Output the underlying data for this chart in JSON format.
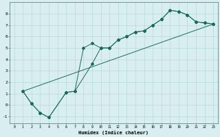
{
  "xlabel": "Humidex (Indice chaleur)",
  "background_color": "#d8eef0",
  "grid_color": "#b8d8da",
  "line_color": "#1a6a5a",
  "xlim": [
    -0.5,
    23.5
  ],
  "ylim": [
    -1.6,
    9.0
  ],
  "xticks": [
    0,
    1,
    2,
    3,
    4,
    5,
    6,
    7,
    8,
    9,
    10,
    11,
    12,
    13,
    14,
    15,
    16,
    17,
    18,
    19,
    20,
    21,
    22,
    23
  ],
  "yticks": [
    -1,
    0,
    1,
    2,
    3,
    4,
    5,
    6,
    7,
    8
  ],
  "line1_x": [
    1,
    2,
    3,
    4,
    6,
    7,
    8,
    9,
    10,
    11,
    12,
    13,
    14,
    15,
    16,
    17,
    18,
    19,
    20,
    21,
    22,
    23
  ],
  "line1_y": [
    1.2,
    0.1,
    -0.7,
    -1.1,
    1.1,
    1.2,
    5.0,
    5.4,
    5.0,
    5.0,
    5.7,
    6.0,
    6.4,
    6.5,
    7.0,
    7.5,
    8.3,
    8.2,
    7.9,
    7.3,
    7.2,
    7.1
  ],
  "line2_x": [
    1,
    2,
    3,
    4,
    6,
    7,
    9,
    10,
    11,
    12,
    13,
    14,
    15,
    16,
    17,
    18,
    19,
    20,
    21,
    22,
    23
  ],
  "line2_y": [
    1.2,
    0.1,
    -0.7,
    -1.1,
    1.1,
    1.2,
    3.6,
    5.0,
    5.0,
    5.7,
    6.0,
    6.4,
    6.5,
    7.0,
    7.5,
    8.3,
    8.2,
    7.9,
    7.3,
    7.2,
    7.1
  ],
  "line3_x": [
    1,
    23
  ],
  "line3_y": [
    1.2,
    7.1
  ]
}
